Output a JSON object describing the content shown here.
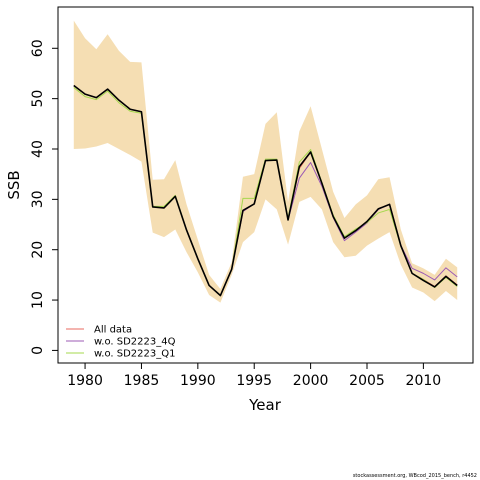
{
  "chart_data": {
    "type": "line",
    "xlabel": "Year",
    "ylabel": "SSB",
    "xlim": [
      1977.6,
      2014.4
    ],
    "ylim": [
      -2.5,
      68.2
    ],
    "x_ticks": [
      1980,
      1985,
      1990,
      1995,
      2000,
      2005,
      2010
    ],
    "y_ticks": [
      0,
      10,
      20,
      30,
      40,
      50,
      60
    ],
    "grid": false,
    "legend_position": "bottom-left",
    "x": [
      1979,
      1980,
      1981,
      1982,
      1983,
      1984,
      1985,
      1986,
      1987,
      1988,
      1989,
      1990,
      1991,
      1992,
      1993,
      1994,
      1995,
      1996,
      1997,
      1998,
      1999,
      2000,
      2001,
      2002,
      2003,
      2004,
      2005,
      2006,
      2007,
      2008,
      2009,
      2010,
      2011,
      2012,
      2013
    ],
    "band": {
      "color": "#F5DEB3",
      "upper": [
        65.5,
        62,
        59.8,
        62.8,
        59.5,
        57.3,
        57.2,
        33.9,
        34,
        37.8,
        29,
        22,
        15,
        12.2,
        17.5,
        34.5,
        35,
        45,
        47.3,
        29.5,
        43.5,
        48.5,
        40,
        31.5,
        26.3,
        29,
        30.8,
        34,
        34.4,
        24,
        17.3,
        16.3,
        15,
        18.2,
        16.5
      ],
      "lower": [
        40,
        40.1,
        40.5,
        41.2,
        40,
        38.8,
        37.5,
        23.4,
        22.5,
        24,
        19.5,
        15.5,
        11,
        9.5,
        15,
        21.5,
        23.5,
        30,
        28,
        21,
        29.5,
        30.5,
        28,
        21.5,
        18.5,
        18.8,
        20.8,
        22.2,
        23.5,
        17,
        12.5,
        11.5,
        9.8,
        11.8,
        10
      ]
    },
    "series": [
      {
        "name": "All data",
        "color": "#E8695F",
        "width": 1,
        "values": [
          52.6,
          50.9,
          50.2,
          51.9,
          49.7,
          47.9,
          47.4,
          28.5,
          28.3,
          30.6,
          23.9,
          18.2,
          12.9,
          10.9,
          16.1,
          27.6,
          29.1,
          37.7,
          37.8,
          25.9,
          36.1,
          39.4,
          33.2,
          26.6,
          22.3,
          23.8,
          25.6,
          28.1,
          29,
          20.8,
          15.3,
          14.1,
          12.7,
          14.8,
          13
        ]
      },
      {
        "name": "w.o. SD2223_4Q",
        "color": "#9C5BB5",
        "width": 1,
        "values": [
          52.6,
          50.9,
          50.2,
          51.9,
          49.7,
          47.9,
          47.4,
          28.5,
          28.3,
          30.6,
          23.9,
          18.2,
          12.9,
          10.9,
          16.1,
          27.6,
          29.1,
          37.7,
          37.8,
          25.9,
          34.2,
          37.3,
          32.6,
          26.4,
          21.8,
          23.5,
          25.3,
          28,
          29,
          20.9,
          16.3,
          15.3,
          14,
          16.4,
          14.6
        ]
      },
      {
        "name": "w.o. SD2223_Q1",
        "color": "#A6D84E",
        "width": 1,
        "values": [
          52.2,
          50.4,
          49.8,
          51.5,
          49.2,
          47.5,
          47.1,
          28.6,
          28.6,
          30.8,
          23.9,
          18.2,
          12.9,
          10.9,
          16.1,
          30.2,
          30.2,
          38,
          38,
          26.3,
          37.4,
          39.9,
          33.4,
          26.9,
          22.6,
          24.1,
          25.4,
          27.3,
          28,
          20.7,
          15.3,
          14.1,
          12.5,
          14.5,
          12.7
        ]
      },
      {
        "name": "",
        "color": "#000000",
        "width": 1.6,
        "values": [
          52.6,
          50.9,
          50.2,
          51.9,
          49.7,
          47.9,
          47.4,
          28.5,
          28.3,
          30.6,
          23.9,
          18.2,
          12.9,
          10.9,
          16.1,
          27.8,
          29.1,
          37.7,
          37.8,
          25.9,
          36.5,
          39.4,
          33.2,
          26.6,
          22.3,
          23.8,
          25.6,
          28.1,
          29,
          20.8,
          15.3,
          13.9,
          12.6,
          14.7,
          12.9
        ]
      }
    ],
    "legend": [
      "All data",
      "w.o. SD2223_4Q",
      "w.o. SD2223_Q1"
    ]
  },
  "footer_text": "stockassessment.org, WBcod_2015_bench, r4452"
}
